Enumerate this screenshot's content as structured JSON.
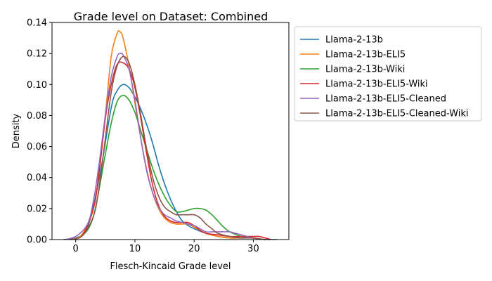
{
  "chart_data": {
    "type": "line",
    "title": "Grade level on Dataset: Combined",
    "xlabel": "Flesch-Kincaid Grade level",
    "ylabel": "Density",
    "xlim": [
      -4,
      36
    ],
    "ylim": [
      0,
      0.14
    ],
    "xticks": [
      0,
      10,
      20,
      30
    ],
    "yticks": [
      0.0,
      0.02,
      0.04,
      0.06,
      0.08,
      0.1,
      0.12,
      0.14
    ],
    "xtick_labels": [
      "0",
      "10",
      "20",
      "30"
    ],
    "ytick_labels": [
      "0.00",
      "0.02",
      "0.04",
      "0.06",
      "0.08",
      "0.10",
      "0.12",
      "0.14"
    ],
    "grid": false,
    "legend_position": "outside-right",
    "series": [
      {
        "name": "Llama-2-13b",
        "color": "#1f77b4",
        "points": [
          [
            -2,
            0
          ],
          [
            0,
            0.001
          ],
          [
            2,
            0.008
          ],
          [
            4,
            0.04
          ],
          [
            6,
            0.085
          ],
          [
            7,
            0.096
          ],
          [
            8,
            0.1
          ],
          [
            9,
            0.098
          ],
          [
            10,
            0.092
          ],
          [
            11,
            0.084
          ],
          [
            12,
            0.074
          ],
          [
            13,
            0.062
          ],
          [
            14,
            0.048
          ],
          [
            15,
            0.036
          ],
          [
            16,
            0.026
          ],
          [
            17,
            0.018
          ],
          [
            18,
            0.012
          ],
          [
            19,
            0.009
          ],
          [
            20,
            0.007
          ],
          [
            22,
            0.004
          ],
          [
            24,
            0.002
          ],
          [
            26,
            0.001
          ],
          [
            28,
            0.001
          ],
          [
            30,
            0.001
          ],
          [
            32,
            0
          ],
          [
            34,
            0
          ]
        ]
      },
      {
        "name": "Llama-2-13b-ELI5",
        "color": "#ff7f0e",
        "points": [
          [
            -1,
            0
          ],
          [
            1,
            0.003
          ],
          [
            3,
            0.02
          ],
          [
            4,
            0.045
          ],
          [
            5,
            0.08
          ],
          [
            6,
            0.118
          ],
          [
            7,
            0.133
          ],
          [
            7.5,
            0.134
          ],
          [
            8,
            0.13
          ],
          [
            9,
            0.112
          ],
          [
            10,
            0.088
          ],
          [
            11,
            0.065
          ],
          [
            12,
            0.045
          ],
          [
            13,
            0.03
          ],
          [
            14,
            0.02
          ],
          [
            15,
            0.014
          ],
          [
            16,
            0.011
          ],
          [
            17,
            0.01
          ],
          [
            18,
            0.01
          ],
          [
            19,
            0.01
          ],
          [
            20,
            0.008
          ],
          [
            22,
            0.004
          ],
          [
            24,
            0.002
          ],
          [
            26,
            0.001
          ],
          [
            28,
            0.001
          ],
          [
            30,
            0.001
          ],
          [
            32,
            0
          ]
        ]
      },
      {
        "name": "Llama-2-13b-Wiki",
        "color": "#2ca02c",
        "points": [
          [
            -1,
            0
          ],
          [
            1,
            0.002
          ],
          [
            3,
            0.015
          ],
          [
            5,
            0.055
          ],
          [
            6,
            0.075
          ],
          [
            7,
            0.089
          ],
          [
            8,
            0.093
          ],
          [
            9,
            0.09
          ],
          [
            10,
            0.082
          ],
          [
            11,
            0.07
          ],
          [
            12,
            0.058
          ],
          [
            13,
            0.046
          ],
          [
            14,
            0.036
          ],
          [
            15,
            0.028
          ],
          [
            16,
            0.022
          ],
          [
            17,
            0.018
          ],
          [
            18,
            0.018
          ],
          [
            19,
            0.019
          ],
          [
            20,
            0.02
          ],
          [
            21,
            0.02
          ],
          [
            22,
            0.019
          ],
          [
            23,
            0.016
          ],
          [
            24,
            0.012
          ],
          [
            25,
            0.008
          ],
          [
            26,
            0.005
          ],
          [
            28,
            0.002
          ],
          [
            30,
            0.001
          ],
          [
            32,
            0
          ]
        ]
      },
      {
        "name": "Llama-2-13b-ELI5-Wiki",
        "color": "#d62728",
        "points": [
          [
            -1,
            0
          ],
          [
            1,
            0.002
          ],
          [
            3,
            0.02
          ],
          [
            4,
            0.045
          ],
          [
            5,
            0.078
          ],
          [
            6,
            0.1
          ],
          [
            7,
            0.113
          ],
          [
            8,
            0.114
          ],
          [
            9,
            0.11
          ],
          [
            10,
            0.098
          ],
          [
            11,
            0.078
          ],
          [
            12,
            0.055
          ],
          [
            13,
            0.035
          ],
          [
            14,
            0.022
          ],
          [
            15,
            0.015
          ],
          [
            16,
            0.012
          ],
          [
            17,
            0.011
          ],
          [
            18,
            0.011
          ],
          [
            19,
            0.011
          ],
          [
            20,
            0.009
          ],
          [
            21,
            0.006
          ],
          [
            22,
            0.004
          ],
          [
            24,
            0.003
          ],
          [
            26,
            0.002
          ],
          [
            28,
            0.002
          ],
          [
            29,
            0.002
          ],
          [
            30,
            0.002
          ],
          [
            31,
            0.002
          ],
          [
            32,
            0.001
          ],
          [
            33,
            0
          ]
        ]
      },
      {
        "name": "Llama-2-13b-ELI5-Cleaned",
        "color": "#9467bd",
        "points": [
          [
            -2,
            0
          ],
          [
            0,
            0.002
          ],
          [
            2,
            0.01
          ],
          [
            3,
            0.025
          ],
          [
            4,
            0.05
          ],
          [
            5,
            0.08
          ],
          [
            6,
            0.105
          ],
          [
            7,
            0.118
          ],
          [
            7.5,
            0.12
          ],
          [
            8,
            0.119
          ],
          [
            9,
            0.11
          ],
          [
            10,
            0.09
          ],
          [
            11,
            0.065
          ],
          [
            12,
            0.044
          ],
          [
            13,
            0.03
          ],
          [
            14,
            0.021
          ],
          [
            15,
            0.016
          ],
          [
            16,
            0.014
          ],
          [
            17,
            0.012
          ],
          [
            18,
            0.011
          ],
          [
            19,
            0.01
          ],
          [
            20,
            0.009
          ],
          [
            21,
            0.007
          ],
          [
            22,
            0.005
          ],
          [
            23,
            0.005
          ],
          [
            24,
            0.005
          ],
          [
            25,
            0.005
          ],
          [
            26,
            0.005
          ],
          [
            27,
            0.004
          ],
          [
            28,
            0.003
          ],
          [
            30,
            0.001
          ],
          [
            32,
            0
          ]
        ]
      },
      {
        "name": "Llama-2-13b-ELI5-Cleaned-Wiki",
        "color": "#8c564b",
        "points": [
          [
            -1,
            0
          ],
          [
            1,
            0.002
          ],
          [
            3,
            0.015
          ],
          [
            4,
            0.035
          ],
          [
            5,
            0.065
          ],
          [
            6,
            0.095
          ],
          [
            7,
            0.112
          ],
          [
            8,
            0.118
          ],
          [
            9,
            0.114
          ],
          [
            10,
            0.1
          ],
          [
            11,
            0.08
          ],
          [
            12,
            0.058
          ],
          [
            13,
            0.04
          ],
          [
            14,
            0.028
          ],
          [
            15,
            0.021
          ],
          [
            16,
            0.018
          ],
          [
            17,
            0.016
          ],
          [
            18,
            0.016
          ],
          [
            19,
            0.016
          ],
          [
            20,
            0.016
          ],
          [
            21,
            0.014
          ],
          [
            22,
            0.01
          ],
          [
            23,
            0.007
          ],
          [
            24,
            0.004
          ],
          [
            26,
            0.002
          ],
          [
            28,
            0.001
          ],
          [
            30,
            0.001
          ],
          [
            32,
            0
          ]
        ]
      }
    ]
  }
}
